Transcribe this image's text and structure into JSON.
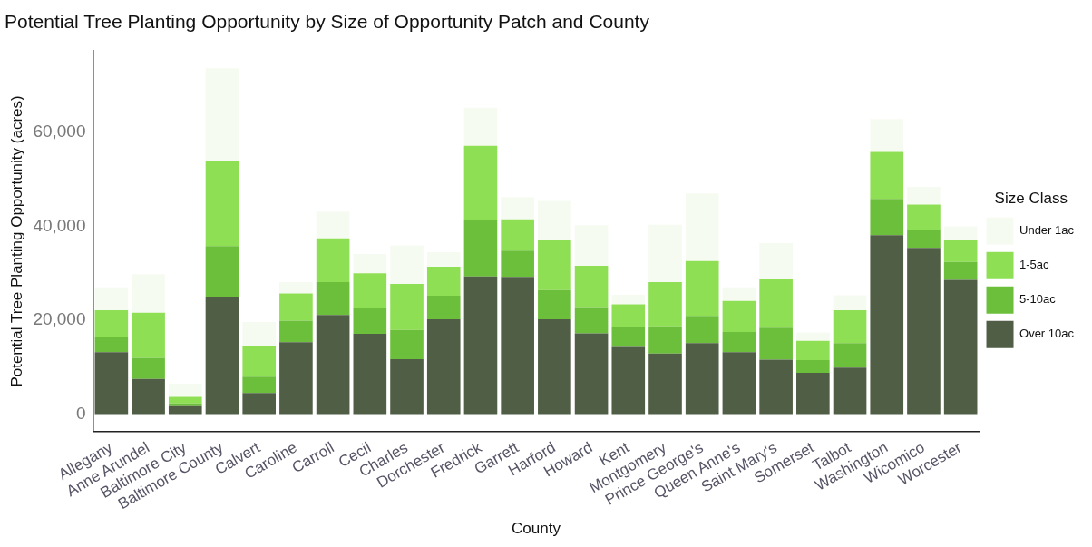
{
  "chart_data": {
    "type": "bar",
    "stacked": true,
    "title": "Potential Tree Planting Opportunity by Size of Opportunity Patch and County",
    "xlabel": "County",
    "ylabel": "Potential Tree Planting Opportunity (acres)",
    "legend_title": "Size Class",
    "legend": "right",
    "grid": false,
    "categories": [
      "Allegany",
      "Anne Arundel",
      "Baltimore City",
      "Baltimore County",
      "Calvert",
      "Caroline",
      "Carroll",
      "Cecil",
      "Charles",
      "Dorchester",
      "Fredrick",
      "Garrett",
      "Harford",
      "Howard",
      "Kent",
      "Montgomery",
      "Prince George's",
      "Queen Anne's",
      "Saint Mary's",
      "Somerset",
      "Talbot",
      "Washington",
      "Wicomico",
      "Worcester"
    ],
    "ylim": [
      -3700,
      77300
    ],
    "yticks": [
      {
        "value": 0,
        "label": "0"
      },
      {
        "value": 20000,
        "label": "20,000"
      },
      {
        "value": 40000,
        "label": "40,000"
      },
      {
        "value": 60000,
        "label": "60,000"
      }
    ],
    "series": [
      {
        "name": "Over 10ac",
        "color": "#4f5e45",
        "values": [
          13200,
          7500,
          1700,
          25000,
          4500,
          15300,
          21100,
          17100,
          11700,
          20200,
          29300,
          29200,
          20200,
          17200,
          14500,
          12900,
          15100,
          13200,
          11600,
          8800,
          9900,
          38100,
          35400,
          28600
        ]
      },
      {
        "name": "5-10ac",
        "color": "#6cbf3a",
        "values": [
          3200,
          4500,
          600,
          10800,
          3500,
          4600,
          7000,
          5500,
          6200,
          5000,
          12000,
          5600,
          6200,
          5600,
          4000,
          5800,
          5800,
          4300,
          6800,
          2700,
          5200,
          7700,
          3900,
          3800
        ]
      },
      {
        "name": "1-5ac",
        "color": "#8fdf55",
        "values": [
          5700,
          9600,
          1400,
          18100,
          6600,
          5800,
          9300,
          7400,
          9800,
          6200,
          15800,
          6700,
          10600,
          8800,
          4900,
          9400,
          11700,
          6600,
          10300,
          4100,
          7000,
          10000,
          5300,
          4600
        ]
      },
      {
        "name": "Under 1ac",
        "color": "#f6fbf1",
        "values": [
          4900,
          8200,
          2800,
          19700,
          5000,
          2400,
          5700,
          4100,
          8200,
          3100,
          8100,
          4700,
          8400,
          8600,
          2000,
          12200,
          14400,
          2900,
          7700,
          1800,
          3200,
          7000,
          3800,
          3000
        ]
      }
    ]
  }
}
